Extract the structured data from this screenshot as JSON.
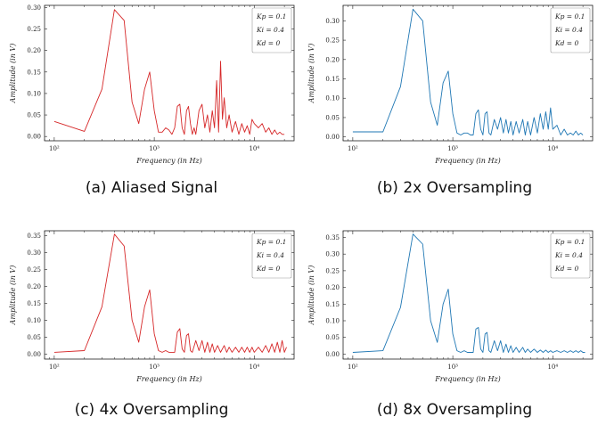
{
  "figure": {
    "captions": [
      "(a) Aliased Signal",
      "(b) 2x Oversampling",
      "(c) 4x Oversampling",
      "(d) 8x Oversampling"
    ]
  },
  "chart_data": [
    {
      "type": "line",
      "caption": "(a) Aliased Signal",
      "xlabel": "Frequency (in Hz)",
      "ylabel": "Amplitude (in V)",
      "xscale": "log",
      "xlim": [
        80,
        25000
      ],
      "ylim": [
        -0.01,
        0.305
      ],
      "yticks": [
        0.0,
        0.05,
        0.1,
        0.15,
        0.2,
        0.25,
        0.3
      ],
      "ytick_labels": [
        "0.00",
        "0.05",
        "0.10",
        "0.15",
        "0.20",
        "0.25",
        "0.30"
      ],
      "xtick_labels": [
        "10²",
        "10³",
        "10⁴"
      ],
      "color": "#d62728",
      "legend": [
        "Kp = 0.1",
        "Ki = 0.4",
        "Kd = 0"
      ],
      "legend_loc": "top-right",
      "x": [
        100,
        200,
        300,
        400,
        500,
        600,
        700,
        800,
        900,
        1000,
        1100,
        1200,
        1300,
        1400,
        1500,
        1600,
        1700,
        1800,
        1900,
        2000,
        2100,
        2200,
        2300,
        2400,
        2500,
        2600,
        2800,
        3000,
        3200,
        3400,
        3600,
        3800,
        4000,
        4200,
        4400,
        4600,
        4800,
        5000,
        5300,
        5600,
        6000,
        6500,
        7000,
        7500,
        8000,
        8500,
        9000,
        9500,
        10000,
        11000,
        12000,
        13000,
        14000,
        15000,
        16000,
        17000,
        18000,
        19000,
        20000
      ],
      "y": [
        0.035,
        0.012,
        0.11,
        0.295,
        0.27,
        0.08,
        0.03,
        0.11,
        0.15,
        0.06,
        0.01,
        0.01,
        0.02,
        0.015,
        0.005,
        0.02,
        0.07,
        0.075,
        0.02,
        0.005,
        0.06,
        0.07,
        0.03,
        0.005,
        0.02,
        0.005,
        0.06,
        0.075,
        0.02,
        0.05,
        0.01,
        0.06,
        0.02,
        0.13,
        0.01,
        0.175,
        0.04,
        0.09,
        0.02,
        0.05,
        0.01,
        0.035,
        0.005,
        0.03,
        0.01,
        0.025,
        0.005,
        0.04,
        0.03,
        0.02,
        0.03,
        0.01,
        0.02,
        0.005,
        0.015,
        0.005,
        0.01,
        0.005,
        0.005
      ]
    },
    {
      "type": "line",
      "caption": "(b) 2x Oversampling",
      "xlabel": "Frequency (in Hz)",
      "ylabel": "Amplitude (in V)",
      "xscale": "log",
      "xlim": [
        80,
        25000
      ],
      "ylim": [
        -0.01,
        0.34
      ],
      "yticks": [
        0.0,
        0.05,
        0.1,
        0.15,
        0.2,
        0.25,
        0.3
      ],
      "ytick_labels": [
        "0.00",
        "0.05",
        "0.10",
        "0.15",
        "0.20",
        "0.25",
        "0.30"
      ],
      "xtick_labels": [
        "10²",
        "10³",
        "10⁴"
      ],
      "color": "#1f77b4",
      "legend": [
        "Kp = 0.1",
        "Ki = 0.4",
        "Kd = 0"
      ],
      "legend_loc": "top-right",
      "x": [
        100,
        200,
        300,
        400,
        500,
        600,
        700,
        800,
        900,
        1000,
        1100,
        1200,
        1300,
        1400,
        1500,
        1600,
        1700,
        1800,
        1900,
        2000,
        2100,
        2200,
        2300,
        2400,
        2600,
        2800,
        3000,
        3200,
        3400,
        3600,
        3800,
        4000,
        4300,
        4600,
        5000,
        5300,
        5600,
        6000,
        6500,
        7000,
        7500,
        8000,
        8500,
        9000,
        9500,
        10000,
        11000,
        12000,
        13000,
        14000,
        15000,
        16000,
        17000,
        18000,
        19000,
        20000
      ],
      "y": [
        0.013,
        0.013,
        0.13,
        0.33,
        0.3,
        0.09,
        0.03,
        0.14,
        0.17,
        0.06,
        0.01,
        0.005,
        0.01,
        0.01,
        0.005,
        0.005,
        0.06,
        0.07,
        0.02,
        0.005,
        0.06,
        0.065,
        0.01,
        0.005,
        0.045,
        0.02,
        0.05,
        0.01,
        0.045,
        0.01,
        0.04,
        0.005,
        0.04,
        0.01,
        0.045,
        0.005,
        0.04,
        0.005,
        0.05,
        0.01,
        0.06,
        0.02,
        0.065,
        0.02,
        0.075,
        0.02,
        0.03,
        0.005,
        0.02,
        0.005,
        0.01,
        0.005,
        0.015,
        0.005,
        0.01,
        0.005
      ]
    },
    {
      "type": "line",
      "caption": "(c) 4x Oversampling",
      "xlabel": "Frequency (in Hz)",
      "ylabel": "Amplitude (in V)",
      "xscale": "log",
      "xlim": [
        80,
        25000
      ],
      "ylim": [
        -0.015,
        0.365
      ],
      "yticks": [
        0.0,
        0.05,
        0.1,
        0.15,
        0.2,
        0.25,
        0.3,
        0.35
      ],
      "ytick_labels": [
        "0.00",
        "0.05",
        "0.10",
        "0.15",
        "0.20",
        "0.25",
        "0.30",
        "0.35"
      ],
      "xtick_labels": [
        "10²",
        "10³",
        "10⁴"
      ],
      "color": "#d62728",
      "legend": [
        "Kp = 0.1",
        "Ki = 0.4",
        "Kd = 0"
      ],
      "legend_loc": "top-right",
      "x": [
        100,
        200,
        300,
        400,
        500,
        600,
        700,
        800,
        900,
        1000,
        1100,
        1200,
        1300,
        1400,
        1500,
        1600,
        1700,
        1800,
        1900,
        2000,
        2100,
        2200,
        2300,
        2400,
        2600,
        2800,
        3000,
        3200,
        3400,
        3600,
        3800,
        4000,
        4300,
        4600,
        5000,
        5300,
        5600,
        6000,
        6500,
        7000,
        7500,
        8000,
        8500,
        9000,
        9500,
        10000,
        11000,
        12000,
        13000,
        14000,
        15000,
        16000,
        17000,
        18000,
        19000,
        20000,
        21000
      ],
      "y": [
        0.005,
        0.01,
        0.14,
        0.355,
        0.32,
        0.1,
        0.035,
        0.14,
        0.19,
        0.06,
        0.01,
        0.005,
        0.01,
        0.005,
        0.005,
        0.005,
        0.065,
        0.075,
        0.015,
        0.005,
        0.055,
        0.06,
        0.01,
        0.005,
        0.04,
        0.01,
        0.04,
        0.005,
        0.035,
        0.005,
        0.03,
        0.005,
        0.025,
        0.005,
        0.025,
        0.005,
        0.02,
        0.005,
        0.02,
        0.005,
        0.02,
        0.005,
        0.02,
        0.005,
        0.02,
        0.005,
        0.02,
        0.005,
        0.025,
        0.005,
        0.03,
        0.005,
        0.035,
        0.005,
        0.04,
        0.005,
        0.02
      ]
    },
    {
      "type": "line",
      "caption": "(d) 8x Oversampling",
      "xlabel": "Frequency (in Hz)",
      "ylabel": "Amplitude (in V)",
      "xscale": "log",
      "xlim": [
        80,
        25000
      ],
      "ylim": [
        -0.015,
        0.37
      ],
      "yticks": [
        0.0,
        0.05,
        0.1,
        0.15,
        0.2,
        0.25,
        0.3,
        0.35
      ],
      "ytick_labels": [
        "0.00",
        "0.05",
        "0.10",
        "0.15",
        "0.20",
        "0.25",
        "0.30",
        "0.35"
      ],
      "xtick_labels": [
        "10²",
        "10³",
        "10⁴"
      ],
      "color": "#1f77b4",
      "legend": [
        "Kp = 0.1",
        "Ki = 0.4",
        "Kd = 0"
      ],
      "legend_loc": "top-right",
      "x": [
        100,
        200,
        300,
        400,
        500,
        600,
        700,
        800,
        900,
        1000,
        1100,
        1200,
        1300,
        1400,
        1500,
        1600,
        1700,
        1800,
        1900,
        2000,
        2100,
        2200,
        2300,
        2400,
        2600,
        2800,
        3000,
        3200,
        3400,
        3600,
        3800,
        4000,
        4300,
        4600,
        5000,
        5300,
        5600,
        6000,
        6500,
        7000,
        7500,
        8000,
        8500,
        9000,
        9500,
        10000,
        11000,
        12000,
        13000,
        14000,
        15000,
        16000,
        17000,
        18000,
        19000,
        20000,
        21000
      ],
      "y": [
        0.005,
        0.01,
        0.14,
        0.36,
        0.33,
        0.1,
        0.035,
        0.15,
        0.195,
        0.06,
        0.01,
        0.005,
        0.01,
        0.005,
        0.005,
        0.005,
        0.075,
        0.08,
        0.015,
        0.005,
        0.06,
        0.065,
        0.01,
        0.005,
        0.04,
        0.01,
        0.04,
        0.005,
        0.03,
        0.005,
        0.025,
        0.005,
        0.02,
        0.005,
        0.02,
        0.005,
        0.015,
        0.005,
        0.015,
        0.005,
        0.012,
        0.005,
        0.012,
        0.005,
        0.01,
        0.005,
        0.01,
        0.005,
        0.01,
        0.005,
        0.01,
        0.005,
        0.01,
        0.005,
        0.01,
        0.005,
        0.005
      ]
    }
  ]
}
